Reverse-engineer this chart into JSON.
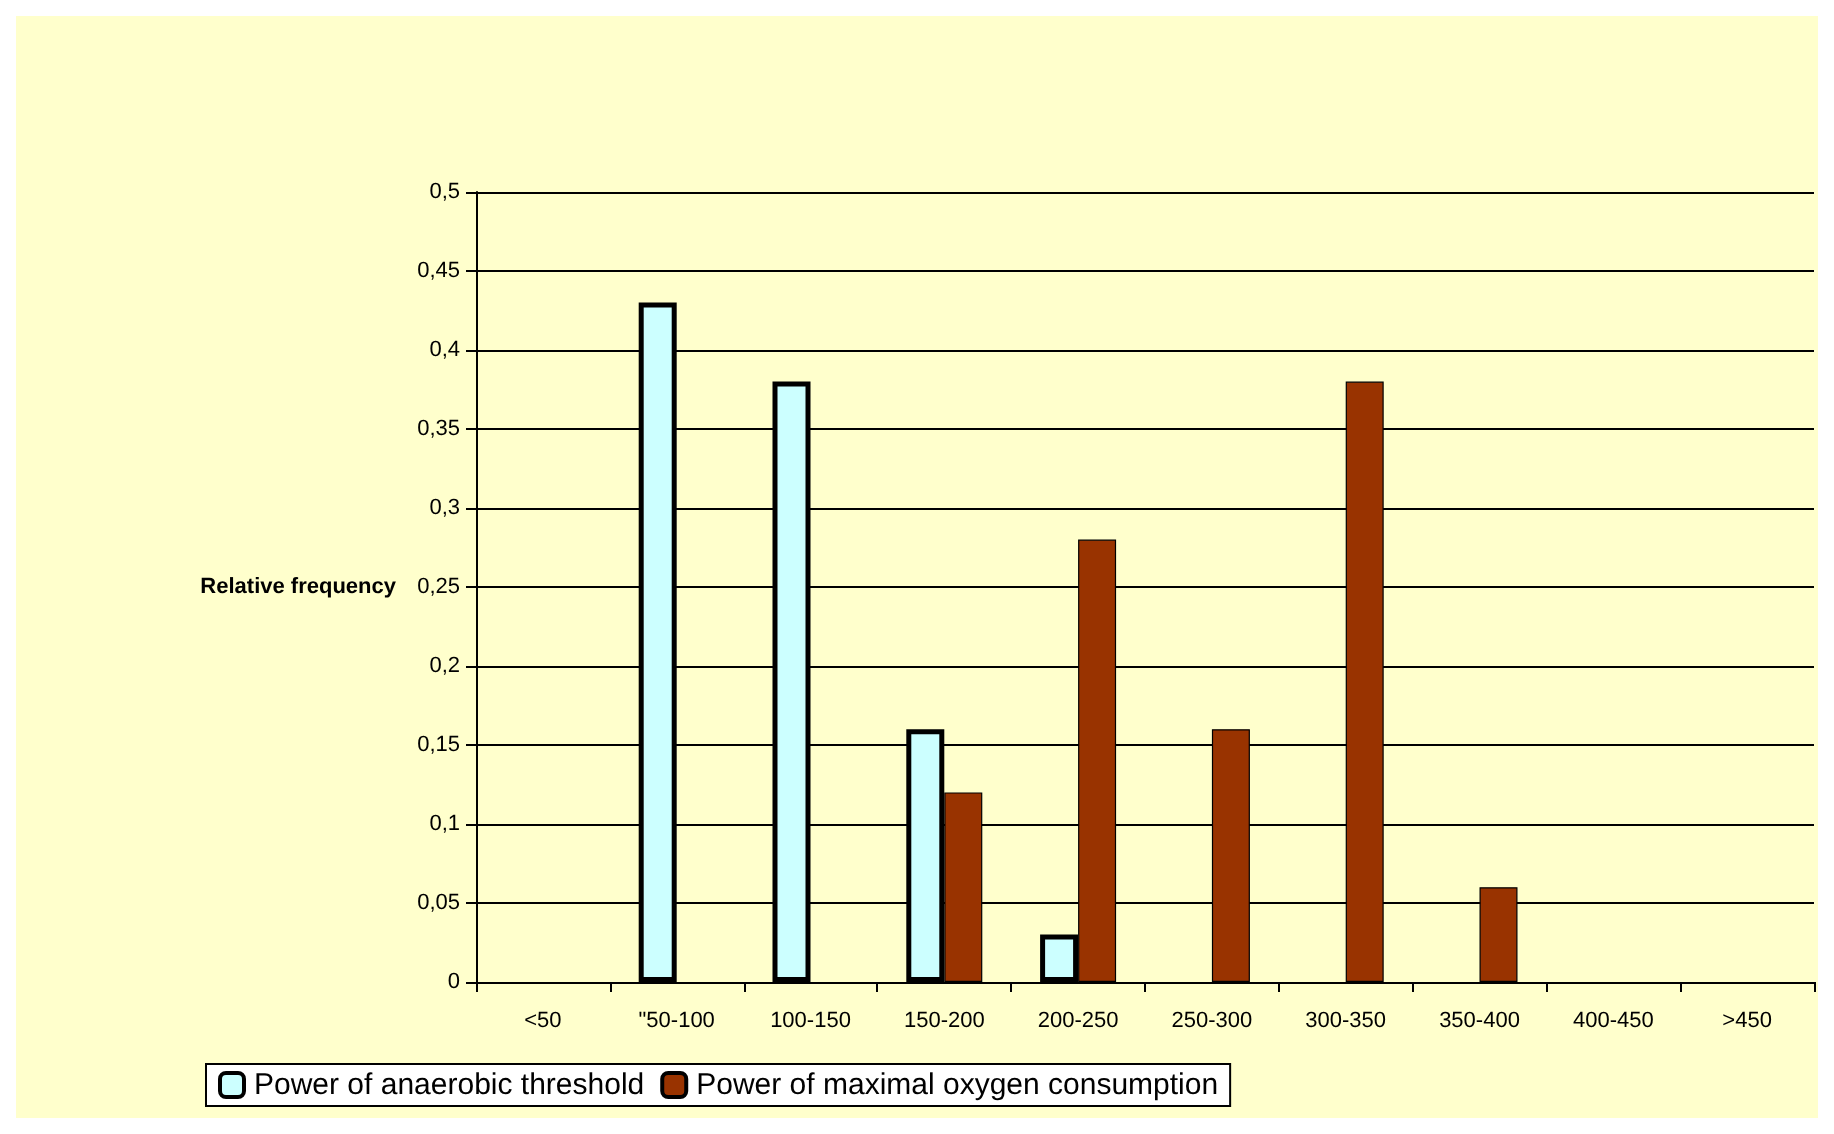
{
  "chart_data": {
    "type": "bar",
    "ylabel": "Relative frequency",
    "categories": [
      "<50",
      "\"50-100",
      "100-150",
      "150-200",
      "200-250",
      "250-300",
      "300-350",
      "350-400",
      "400-450",
      ">450"
    ],
    "series": [
      {
        "name": "Power of anaerobic threshold",
        "color": "#ccffff",
        "values": [
          null,
          0.43,
          0.38,
          0.16,
          0.03,
          null,
          null,
          null,
          null,
          null
        ]
      },
      {
        "name": "Power of maximal oxygen consumption",
        "color": "#993300",
        "values": [
          null,
          null,
          null,
          0.12,
          0.28,
          0.16,
          0.38,
          0.06,
          null,
          null
        ]
      }
    ],
    "ylim": [
      0,
      0.5
    ],
    "yticks": [
      {
        "value": 0,
        "label": "0"
      },
      {
        "value": 0.05,
        "label": "0,05"
      },
      {
        "value": 0.1,
        "label": "0,1"
      },
      {
        "value": 0.15,
        "label": "0,15"
      },
      {
        "value": 0.2,
        "label": "0,2"
      },
      {
        "value": 0.25,
        "label": "0,25"
      },
      {
        "value": 0.3,
        "label": "0,3"
      },
      {
        "value": 0.35,
        "label": "0,35"
      },
      {
        "value": 0.4,
        "label": "0,4"
      },
      {
        "value": 0.45,
        "label": "0,45"
      },
      {
        "value": 0.5,
        "label": "0,5"
      }
    ],
    "grid": "y",
    "legend": "bottom left"
  }
}
